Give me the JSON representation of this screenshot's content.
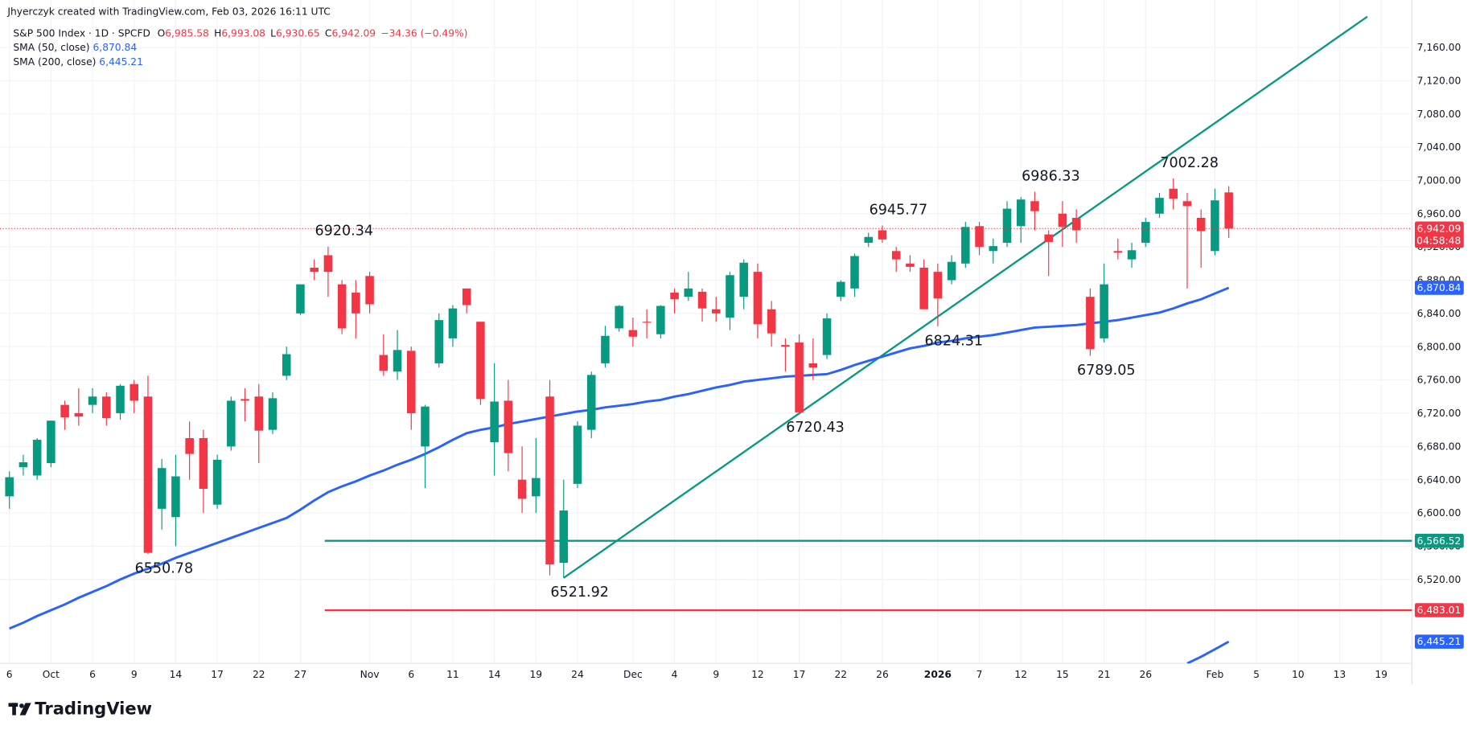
{
  "header": {
    "credit": "Jhyerczyk created with TradingView.com, Feb 03, 2026 16:11 UTC",
    "symbol": "S&P 500 Index · 1D · SPCFD",
    "ohlc": [
      {
        "key": "O",
        "value": "6,985.58"
      },
      {
        "key": "H",
        "value": "6,993.08"
      },
      {
        "key": "L",
        "value": "6,930.65"
      },
      {
        "key": "C",
        "value": "6,942.09"
      }
    ],
    "change": "−34.36 (−0.49%)"
  },
  "footer": {
    "logo": "TradingView"
  },
  "chart_data": {
    "type": "candlestick",
    "categories": [
      "6",
      null,
      null,
      "Oct",
      null,
      null,
      "6",
      null,
      null,
      "9",
      null,
      null,
      "14",
      null,
      null,
      "17",
      null,
      null,
      "22",
      null,
      null,
      "27",
      null,
      null,
      null,
      null,
      "Nov",
      null,
      null,
      "6",
      null,
      null,
      "11",
      null,
      null,
      "14",
      null,
      null,
      "19",
      null,
      null,
      "24",
      null,
      null,
      null,
      "Dec",
      null,
      null,
      "4",
      null,
      null,
      "9",
      null,
      null,
      "12",
      null,
      null,
      "17",
      null,
      null,
      "22",
      null,
      null,
      "26",
      null,
      null,
      null,
      "2026",
      null,
      null,
      "7",
      null,
      null,
      "12",
      null,
      null,
      "15",
      null,
      null,
      "21",
      null,
      null,
      "26",
      null,
      null,
      null,
      null,
      "Feb",
      null,
      null,
      "5",
      null,
      null,
      "10",
      null,
      null,
      "13",
      null,
      null,
      "19"
    ],
    "open": [
      6620,
      6655,
      6645,
      6660,
      6730,
      6720,
      6730,
      6740,
      6720,
      6755,
      6740,
      6605,
      6595,
      6690,
      6690,
      6610,
      6680,
      6737,
      6740,
      6700,
      6765,
      6840,
      6895,
      6910,
      6875,
      6865,
      6885,
      6790,
      6770,
      6795,
      6680,
      6780,
      6810,
      6870,
      6830,
      6685,
      6735,
      6640,
      6620,
      6740,
      6540,
      6635,
      6700,
      6780,
      6822,
      6820,
      6830,
      6815,
      6865,
      6860,
      6866,
      6845,
      6835,
      6860,
      6890,
      6845,
      6802,
      6805,
      6780,
      6790,
      6860,
      6870,
      6925,
      6940,
      6915,
      6900,
      6895,
      6890,
      6880,
      6900,
      6945,
      6915,
      6925,
      6945,
      6975,
      6935,
      6960,
      6955,
      6860,
      6810,
      6915,
      6905,
      6925,
      6960,
      6990,
      6975,
      6955,
      6915,
      6985.58,
      null,
      null,
      null,
      null,
      null,
      null,
      null,
      null,
      null,
      null,
      null
    ],
    "high": [
      6650,
      6670,
      6690,
      6711,
      6735,
      6750,
      6750,
      6745,
      6755,
      6760,
      6765,
      6665,
      6670,
      6710,
      6700,
      6670,
      6740,
      6750,
      6755,
      6745,
      6800,
      6875,
      6905,
      6920.34,
      6880,
      6880,
      6890,
      6815,
      6820,
      6800,
      6730,
      6840,
      6850,
      6870,
      6830,
      6780,
      6760,
      6680,
      6690,
      6760,
      6640,
      6710,
      6770,
      6825,
      6850,
      6835,
      6845,
      6850,
      6870,
      6890,
      6870,
      6860,
      6890,
      6905,
      6900,
      6855,
      6810,
      6815,
      6810,
      6840,
      6880,
      6912,
      6937,
      6945.77,
      6920,
      6910,
      6905,
      6900,
      6910,
      6950,
      6950,
      6930,
      6975,
      6980,
      6986.33,
      6940,
      6975,
      6965,
      6870,
      6900,
      6930,
      6925,
      6955,
      6985,
      7002.28,
      6985,
      6965,
      6990,
      6993.08,
      null,
      null,
      null,
      null,
      null,
      null,
      null,
      null,
      null,
      null,
      null
    ],
    "low": [
      6605,
      6645,
      6640,
      6655,
      6700,
      6705,
      6720,
      6705,
      6712,
      6720,
      6550.78,
      6580,
      6560,
      6640,
      6600,
      6605,
      6675,
      6710,
      6660,
      6695,
      6760,
      6838,
      6880,
      6860,
      6815,
      6810,
      6840,
      6765,
      6760,
      6700,
      6630,
      6775,
      6800,
      6840,
      6730,
      6645,
      6650,
      6600,
      6600,
      6525,
      6521.92,
      6630,
      6690,
      6775,
      6818,
      6800,
      6810,
      6810,
      6840,
      6855,
      6830,
      6830,
      6820,
      6845,
      6810,
      6800,
      6770,
      6720.43,
      6760,
      6785,
      6855,
      6860,
      6920,
      6925,
      6890,
      6890,
      6845,
      6824.31,
      6875,
      6895,
      6910,
      6900,
      6920,
      6925,
      6940,
      6885,
      6920,
      6925,
      6789.05,
      6805,
      6905,
      6895,
      6920,
      6955,
      6965,
      6870,
      6895,
      6910,
      6930.65,
      null,
      null,
      null,
      null,
      null,
      null,
      null,
      null,
      null,
      null,
      null
    ],
    "close": [
      6643,
      6661,
      6688,
      6711,
      6715,
      6716,
      6740,
      6714,
      6753,
      6735,
      6552,
      6654,
      6644,
      6671,
      6629,
      6664,
      6735,
      6735,
      6699,
      6738,
      6791,
      6875,
      6890,
      6890,
      6822,
      6840,
      6851,
      6771,
      6796,
      6720,
      6728,
      6832,
      6846,
      6850,
      6737,
      6734,
      6672,
      6617,
      6642,
      6538,
      6603,
      6705,
      6766,
      6813,
      6849,
      6812,
      6829,
      6849,
      6857,
      6870,
      6846,
      6840,
      6886,
      6901,
      6827,
      6816,
      6800,
      6721,
      6775,
      6834,
      6878,
      6909,
      6932,
      6929,
      6905,
      6896,
      6845,
      6858,
      6902,
      6944,
      6920,
      6921,
      6966,
      6977,
      6963,
      6926,
      6944,
      6940,
      6797,
      6875,
      6913,
      6916,
      6950,
      6979,
      6978,
      6969,
      6939,
      6976,
      6942.09,
      null,
      null,
      null,
      null,
      null,
      null,
      null,
      null,
      null,
      null,
      null
    ],
    "up_color": "#089981",
    "down_color": "#f23645",
    "ylim": [
      6419,
      7217
    ],
    "yticks": [
      {
        "value": 6520,
        "label": "6,520.00"
      },
      {
        "value": 6560,
        "label": "6,560.00"
      },
      {
        "value": 6600,
        "label": "6,600.00"
      },
      {
        "value": 6640,
        "label": "6,640.00"
      },
      {
        "value": 6680,
        "label": "6,680.00"
      },
      {
        "value": 6720,
        "label": "6,720.00"
      },
      {
        "value": 6760,
        "label": "6,760.00"
      },
      {
        "value": 6800,
        "label": "6,800.00"
      },
      {
        "value": 6840,
        "label": "6,840.00"
      },
      {
        "value": 6880,
        "label": "6,880.00"
      },
      {
        "value": 6920,
        "label": "6,920.00"
      },
      {
        "value": 6960,
        "label": "6,960.00"
      },
      {
        "value": 7000,
        "label": "7,000.00"
      },
      {
        "value": 7040,
        "label": "7,040.00"
      },
      {
        "value": 7080,
        "label": "7,080.00"
      },
      {
        "value": 7120,
        "label": "7,120.00"
      },
      {
        "value": 7160,
        "label": "7,160.00"
      }
    ],
    "grid": true,
    "overlays": [
      {
        "name": "SMA (50, close)",
        "color": "#2962ff",
        "last_label": "6,870.84",
        "values": [
          6461,
          6468,
          6476,
          6483,
          6490,
          6498,
          6505,
          6512,
          6520,
          6527,
          6533,
          6539,
          6546,
          6552,
          6558,
          6564,
          6570,
          6576,
          6582,
          6588,
          6594,
          6604,
          6615,
          6625,
          6632,
          6638,
          6645,
          6651,
          6658,
          6664,
          6671,
          6679,
          6688,
          6696,
          6700,
          6703,
          6707,
          6710,
          6713,
          6716,
          6719,
          6722,
          6724,
          6727,
          6729,
          6731,
          6734,
          6736,
          6740,
          6743,
          6747,
          6751,
          6754,
          6758,
          6760,
          6762,
          6764,
          6765,
          6766,
          6767,
          6772,
          6778,
          6783,
          6788,
          6793,
          6798,
          6801,
          6805,
          6807,
          6810,
          6812,
          6814,
          6817,
          6820,
          6823,
          6824,
          6825,
          6826,
          6828,
          6830,
          6832,
          6835,
          6838,
          6841,
          6846,
          6852,
          6857,
          6864,
          6870.84,
          null,
          null,
          null,
          null,
          null,
          null,
          null,
          null,
          null,
          null,
          null
        ]
      },
      {
        "name": "SMA (200, close)",
        "color": "#2962ff",
        "last_label": "6,445.21",
        "values": [
          null,
          null,
          null,
          null,
          null,
          null,
          null,
          null,
          null,
          null,
          null,
          null,
          null,
          null,
          null,
          null,
          null,
          null,
          null,
          null,
          null,
          null,
          null,
          null,
          null,
          null,
          null,
          null,
          null,
          null,
          null,
          null,
          null,
          null,
          null,
          null,
          null,
          null,
          null,
          null,
          null,
          null,
          null,
          null,
          null,
          null,
          null,
          null,
          null,
          null,
          null,
          null,
          null,
          null,
          null,
          null,
          null,
          null,
          null,
          null,
          null,
          null,
          null,
          null,
          null,
          null,
          null,
          null,
          null,
          null,
          null,
          null,
          null,
          null,
          null,
          null,
          null,
          null,
          null,
          null,
          null,
          null,
          null,
          null,
          null,
          6419,
          6427,
          6436,
          6445.21,
          null,
          null,
          null,
          null,
          null,
          null,
          null,
          null,
          null,
          null,
          null
        ]
      }
    ],
    "levels": [
      {
        "value": 6566.52,
        "label": "6,566.52",
        "color": "#089981"
      },
      {
        "value": 6483.01,
        "label": "6,483.01",
        "color": "#f23645"
      }
    ],
    "trendline": {
      "color": "#089981",
      "values": [
        null,
        null,
        null,
        null,
        null,
        null,
        null,
        null,
        null,
        null,
        null,
        null,
        null,
        null,
        null,
        null,
        null,
        null,
        null,
        null,
        null,
        null,
        null,
        null,
        null,
        null,
        null,
        null,
        null,
        null,
        null,
        null,
        null,
        null,
        null,
        null,
        null,
        null,
        null,
        null,
        6521.92,
        null,
        null,
        null,
        null,
        null,
        null,
        null,
        null,
        null,
        null,
        null,
        null,
        null,
        null,
        null,
        null,
        null,
        null,
        null,
        null,
        null,
        null,
        null,
        null,
        null,
        null,
        null,
        null,
        null,
        null,
        null,
        null,
        null,
        null,
        null,
        null,
        null,
        null,
        null,
        null,
        null,
        null,
        null,
        null,
        null,
        null,
        null,
        null,
        null,
        null,
        null,
        null,
        null,
        null,
        null,
        null,
        null,
        7197,
        null
      ]
    },
    "last_price": {
      "label": "6,942.09",
      "countdown": "04:58:48"
    },
    "annotations": [
      "6920.34",
      "6550.78",
      "6521.92",
      "6720.43",
      "6945.77",
      "6824.31",
      "6986.33",
      "6789.05",
      "7002.28"
    ]
  }
}
